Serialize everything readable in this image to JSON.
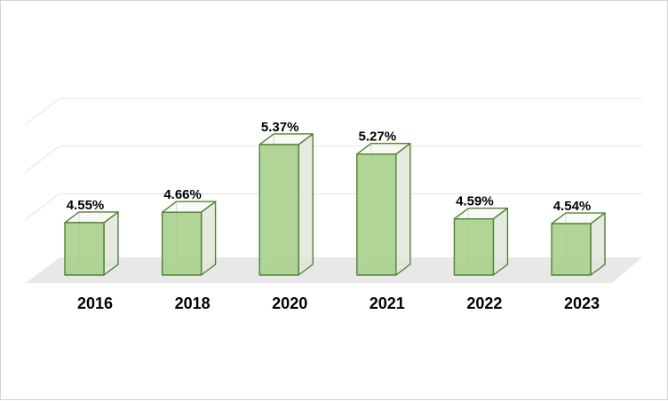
{
  "chart_data": {
    "type": "bar",
    "title": "",
    "xlabel": "",
    "ylabel": "",
    "categories": [
      "2016",
      "2018",
      "2020",
      "2021",
      "2022",
      "2023"
    ],
    "values": [
      4.55,
      4.66,
      5.37,
      5.27,
      4.59,
      4.54
    ],
    "data_labels": [
      "4.55%",
      "4.66%",
      "5.37%",
      "5.27%",
      "4.59%",
      "4.54%"
    ],
    "ylim": [
      4,
      5.5
    ],
    "grid": true,
    "legend": "none",
    "style": "3d-column",
    "colors": {
      "bar_front": "#a9d18e",
      "bar_side": "#e2e7dc",
      "bar_edge": "#538135",
      "floor": "#e8e8e8",
      "gridline": "#e3e3e3"
    }
  }
}
